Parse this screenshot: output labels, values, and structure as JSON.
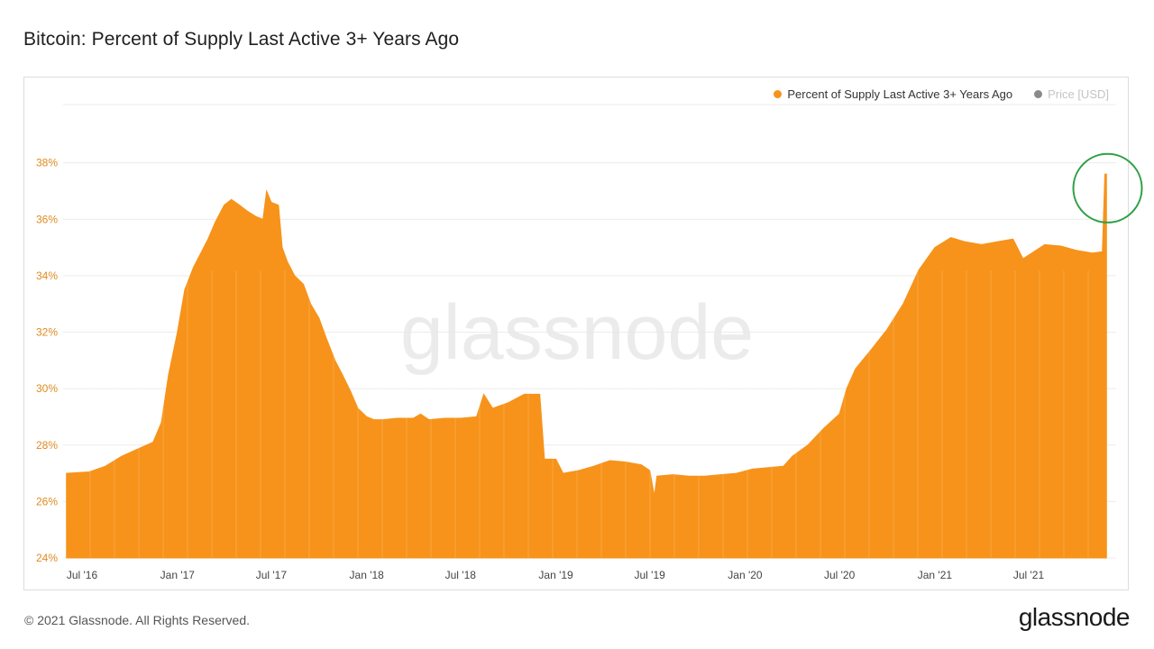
{
  "header": {
    "title": "Bitcoin: Percent of Supply Last Active 3+ Years Ago"
  },
  "legend": {
    "items": [
      {
        "label": "Percent of Supply Last Active 3+ Years Ago",
        "color": "#f7931a",
        "active": true
      },
      {
        "label": "Price [USD]",
        "color": "#8a8a8a",
        "active": false
      }
    ]
  },
  "watermark": {
    "text": "glassnode"
  },
  "footer": {
    "copyright": "© 2021 Glassnode. All Rights Reserved.",
    "brand": "glassnode"
  },
  "annotation": {
    "type": "circle",
    "color": "#2ea043",
    "target_date": "2021-11-25"
  },
  "chart_data": {
    "type": "area",
    "title": "Bitcoin: Percent of Supply Last Active 3+ Years Ago",
    "xlabel": "",
    "ylabel": "",
    "ylim": [
      24,
      40
    ],
    "y_ticks": [
      "24%",
      "26%",
      "28%",
      "30%",
      "32%",
      "34%",
      "36%",
      "38%"
    ],
    "x_ticks": [
      "Jul '16",
      "Jan '17",
      "Jul '17",
      "Jan '18",
      "Jul '18",
      "Jan '19",
      "Jul '19",
      "Jan '20",
      "Jul '20",
      "Jan '21",
      "Jul '21"
    ],
    "grid": true,
    "legend_position": "top-right",
    "series": [
      {
        "name": "Percent of Supply Last Active 3+ Years Ago",
        "color": "#f7931a",
        "points": [
          [
            "2016-06-01",
            27.0
          ],
          [
            "2016-07-15",
            27.05
          ],
          [
            "2016-08-15",
            27.25
          ],
          [
            "2016-09-15",
            27.6
          ],
          [
            "2016-10-15",
            27.85
          ],
          [
            "2016-11-15",
            28.1
          ],
          [
            "2016-12-01",
            28.8
          ],
          [
            "2016-12-15",
            30.5
          ],
          [
            "2017-01-01",
            32.0
          ],
          [
            "2017-01-15",
            33.5
          ],
          [
            "2017-02-01",
            34.3
          ],
          [
            "2017-02-15",
            34.8
          ],
          [
            "2017-03-01",
            35.3
          ],
          [
            "2017-03-15",
            35.9
          ],
          [
            "2017-04-01",
            36.5
          ],
          [
            "2017-04-15",
            36.7
          ],
          [
            "2017-05-01",
            36.5
          ],
          [
            "2017-05-15",
            36.3
          ],
          [
            "2017-06-01",
            36.1
          ],
          [
            "2017-06-15",
            36.0
          ],
          [
            "2017-06-22",
            37.0
          ],
          [
            "2017-07-01",
            36.6
          ],
          [
            "2017-07-15",
            36.5
          ],
          [
            "2017-07-22",
            35.0
          ],
          [
            "2017-08-01",
            34.5
          ],
          [
            "2017-08-15",
            34.0
          ],
          [
            "2017-09-01",
            33.7
          ],
          [
            "2017-09-15",
            33.0
          ],
          [
            "2017-10-01",
            32.5
          ],
          [
            "2017-10-15",
            31.8
          ],
          [
            "2017-11-01",
            31.0
          ],
          [
            "2017-11-15",
            30.5
          ],
          [
            "2017-12-01",
            29.9
          ],
          [
            "2017-12-15",
            29.3
          ],
          [
            "2018-01-01",
            29.0
          ],
          [
            "2018-01-15",
            28.9
          ],
          [
            "2018-02-01",
            28.9
          ],
          [
            "2018-03-01",
            28.95
          ],
          [
            "2018-04-01",
            28.95
          ],
          [
            "2018-04-15",
            29.1
          ],
          [
            "2018-05-01",
            28.9
          ],
          [
            "2018-06-01",
            28.95
          ],
          [
            "2018-07-01",
            28.95
          ],
          [
            "2018-08-01",
            29.0
          ],
          [
            "2018-08-15",
            29.8
          ],
          [
            "2018-09-01",
            29.3
          ],
          [
            "2018-10-01",
            29.5
          ],
          [
            "2018-11-01",
            29.8
          ],
          [
            "2018-12-01",
            29.8
          ],
          [
            "2018-12-10",
            27.5
          ],
          [
            "2019-01-01",
            27.5
          ],
          [
            "2019-01-15",
            27.0
          ],
          [
            "2019-02-15",
            27.1
          ],
          [
            "2019-03-15",
            27.25
          ],
          [
            "2019-04-15",
            27.45
          ],
          [
            "2019-05-15",
            27.4
          ],
          [
            "2019-06-15",
            27.3
          ],
          [
            "2019-07-01",
            27.1
          ],
          [
            "2019-07-10",
            26.2
          ],
          [
            "2019-07-15",
            26.9
          ],
          [
            "2019-08-15",
            26.95
          ],
          [
            "2019-09-15",
            26.9
          ],
          [
            "2019-10-15",
            26.9
          ],
          [
            "2019-11-15",
            26.95
          ],
          [
            "2019-12-15",
            27.0
          ],
          [
            "2020-01-15",
            27.15
          ],
          [
            "2020-02-15",
            27.2
          ],
          [
            "2020-03-15",
            27.25
          ],
          [
            "2020-04-01",
            27.6
          ],
          [
            "2020-05-01",
            28.0
          ],
          [
            "2020-06-01",
            28.6
          ],
          [
            "2020-07-01",
            29.1
          ],
          [
            "2020-07-15",
            30.0
          ],
          [
            "2020-08-01",
            30.7
          ],
          [
            "2020-09-01",
            31.4
          ],
          [
            "2020-10-01",
            32.1
          ],
          [
            "2020-11-01",
            33.0
          ],
          [
            "2020-12-01",
            34.2
          ],
          [
            "2021-01-01",
            35.0
          ],
          [
            "2021-02-01",
            35.35
          ],
          [
            "2021-03-01",
            35.2
          ],
          [
            "2021-04-01",
            35.1
          ],
          [
            "2021-05-01",
            35.2
          ],
          [
            "2021-06-01",
            35.3
          ],
          [
            "2021-06-20",
            34.6
          ],
          [
            "2021-07-15",
            34.9
          ],
          [
            "2021-08-01",
            35.1
          ],
          [
            "2021-09-01",
            35.05
          ],
          [
            "2021-10-01",
            34.9
          ],
          [
            "2021-11-01",
            34.8
          ],
          [
            "2021-11-20",
            34.85
          ],
          [
            "2021-11-25",
            37.6
          ],
          [
            "2021-11-28",
            37.6
          ]
        ]
      }
    ]
  }
}
